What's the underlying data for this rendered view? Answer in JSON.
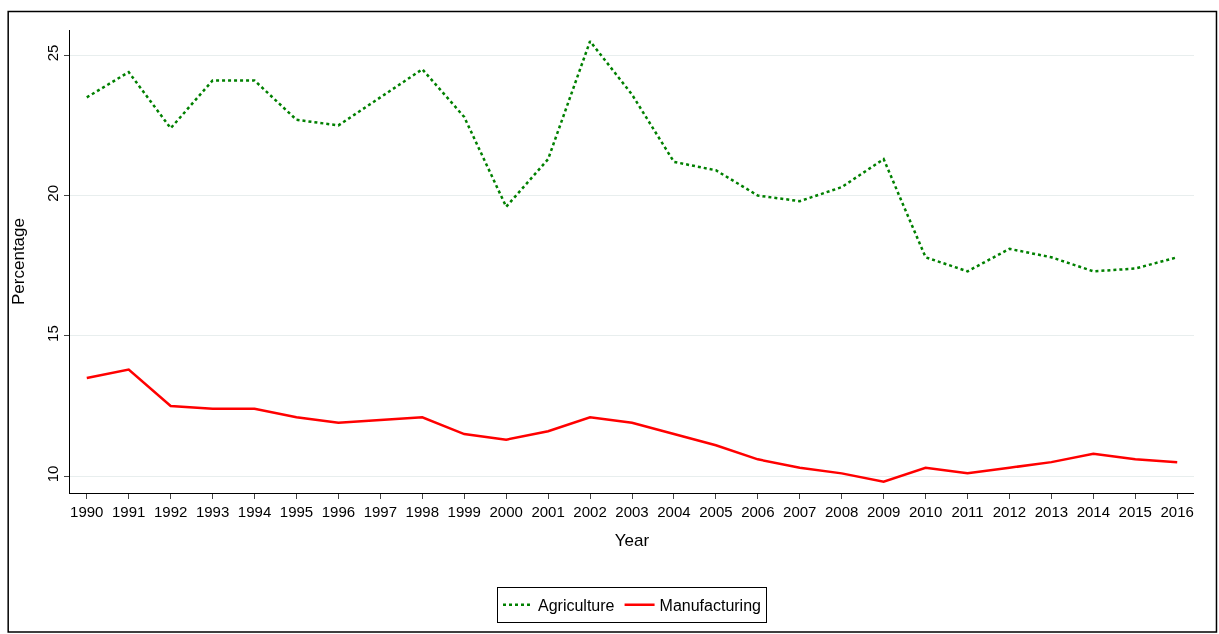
{
  "chart_data": {
    "type": "line",
    "xlabel": "Year",
    "ylabel": "Percentage",
    "categories": [
      "1990",
      "1991",
      "1992",
      "1993",
      "1994",
      "1995",
      "1996",
      "1997",
      "1998",
      "1999",
      "2000",
      "2001",
      "2002",
      "2003",
      "2004",
      "2005",
      "2006",
      "2007",
      "2008",
      "2009",
      "2010",
      "2011",
      "2012",
      "2013",
      "2014",
      "2015",
      "2016"
    ],
    "series": [
      {
        "name": "Agriculture",
        "color": "#008000",
        "line_style": "dotted",
        "values": [
          23.5,
          24.4,
          22.4,
          24.1,
          24.1,
          22.7,
          22.5,
          23.5,
          24.5,
          22.8,
          19.6,
          21.3,
          25.5,
          23.6,
          21.2,
          20.9,
          20.0,
          19.8,
          20.3,
          21.3,
          17.8,
          17.3,
          18.1,
          17.8,
          17.3,
          17.4,
          17.8
        ]
      },
      {
        "name": "Manufacturing",
        "color": "#ff0000",
        "line_style": "solid",
        "values": [
          13.5,
          13.8,
          12.5,
          12.4,
          12.4,
          12.1,
          11.9,
          12.0,
          12.1,
          11.5,
          11.3,
          11.6,
          12.1,
          11.9,
          11.5,
          11.1,
          10.6,
          10.3,
          10.1,
          9.8,
          10.3,
          10.1,
          10.3,
          10.5,
          10.8,
          10.6,
          10.5
        ]
      }
    ],
    "ylim": [
      9.4,
      25.9
    ],
    "yticks": [
      10,
      15,
      20,
      25
    ],
    "grid": "y",
    "legend": "bottom"
  }
}
